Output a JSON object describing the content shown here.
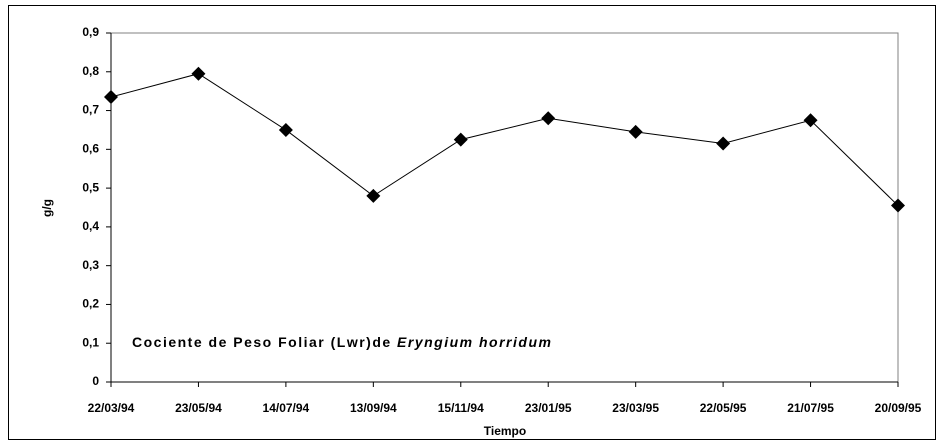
{
  "chart_data": {
    "type": "line",
    "annotation": [
      "Cociente de Peso Foliar (Lwr)de",
      "Eryngium horridum"
    ],
    "xlabel": "Tiempo",
    "ylabel": "g/g",
    "categories": [
      "22/03/94",
      "23/05/94",
      "14/07/94",
      "13/09/94",
      "15/11/94",
      "23/01/95",
      "23/03/95",
      "22/05/95",
      "21/07/95",
      "20/09/95"
    ],
    "series": [
      {
        "name": "Lwr",
        "color": "#000000",
        "values": [
          0.735,
          0.795,
          0.65,
          0.48,
          0.625,
          0.68,
          0.645,
          0.615,
          0.675,
          0.455
        ]
      }
    ],
    "ylim": [
      0,
      0.9
    ],
    "yticks": [
      0,
      {
        "value": 0.1,
        "label": "0,1"
      },
      {
        "value": 0.2,
        "label": "0,2"
      },
      {
        "value": 0.3,
        "label": "0,3"
      },
      {
        "value": 0.4,
        "label": "0,4"
      },
      {
        "value": 0.5,
        "label": "0,5"
      },
      {
        "value": 0.6,
        "label": "0,6"
      },
      {
        "value": 0.7,
        "label": "0,7"
      },
      {
        "value": 0.8,
        "label": "0,8"
      },
      {
        "value": 0.9,
        "label": "0,9"
      }
    ],
    "grid": false
  }
}
